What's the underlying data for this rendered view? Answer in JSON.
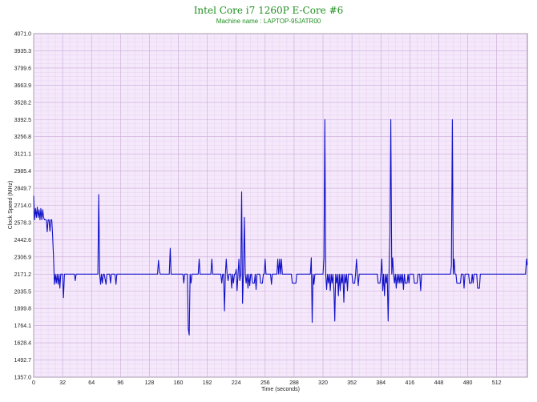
{
  "chart_data": {
    "type": "line",
    "title": "Intel Core i7 1260P E-Core #6",
    "subtitle": "Machine name : LAPTOP-95JATR00",
    "xlabel": "Time (seconds)",
    "ylabel": "Clock Speed (MHz)",
    "xlim": [
      0,
      546
    ],
    "ylim": [
      1357.0,
      4071.0
    ],
    "x_ticks": [
      0,
      32,
      64,
      96,
      128,
      160,
      192,
      224,
      256,
      288,
      320,
      352,
      384,
      416,
      448,
      480,
      512
    ],
    "y_ticks": [
      "1357.0",
      "1492.7",
      "1628.4",
      "1764.1",
      "1899.8",
      "2035.5",
      "2171.2",
      "2306.9",
      "2442.6",
      "2578.3",
      "2714.0",
      "2849.7",
      "2985.4",
      "3121.1",
      "3256.8",
      "3392.5",
      "3528.2",
      "3663.9",
      "3799.6",
      "3935.3",
      "4071.0"
    ],
    "grid": true,
    "colors": {
      "plot_bg": "#f5e8fb",
      "grid": "#c9a9d6",
      "series": "#1010c8",
      "title": "#1f8f1f"
    },
    "series": [
      {
        "values": [
          [
            0,
            2790
          ],
          [
            1,
            2600
          ],
          [
            2,
            2690
          ],
          [
            3,
            2620
          ],
          [
            4,
            2700
          ],
          [
            5,
            2620
          ],
          [
            6,
            2680
          ],
          [
            7,
            2600
          ],
          [
            8,
            2690
          ],
          [
            9,
            2600
          ],
          [
            10,
            2680
          ],
          [
            11,
            2620
          ],
          [
            12,
            2600
          ],
          [
            14,
            2600
          ],
          [
            15,
            2505
          ],
          [
            16,
            2600
          ],
          [
            17,
            2600
          ],
          [
            18,
            2510
          ],
          [
            19,
            2600
          ],
          [
            20,
            2600
          ],
          [
            21,
            2470
          ],
          [
            22,
            2300
          ],
          [
            23,
            2090
          ],
          [
            24,
            2171
          ],
          [
            25,
            2100
          ],
          [
            26,
            2171
          ],
          [
            27,
            2090
          ],
          [
            28,
            2171
          ],
          [
            29,
            2060
          ],
          [
            30,
            2171
          ],
          [
            31,
            2171
          ],
          [
            32,
            2171
          ],
          [
            33,
            1985
          ],
          [
            34,
            2171
          ],
          [
            40,
            2171
          ],
          [
            45,
            2171
          ],
          [
            46,
            2120
          ],
          [
            47,
            2171
          ],
          [
            60,
            2171
          ],
          [
            70,
            2171
          ],
          [
            71,
            2171
          ],
          [
            72,
            2800
          ],
          [
            73,
            2171
          ],
          [
            74,
            2090
          ],
          [
            75,
            2171
          ],
          [
            76,
            2100
          ],
          [
            77,
            2171
          ],
          [
            78,
            2171
          ],
          [
            80,
            2090
          ],
          [
            81,
            2171
          ],
          [
            84,
            2171
          ],
          [
            85,
            2100
          ],
          [
            86,
            2171
          ],
          [
            90,
            2171
          ],
          [
            91,
            2090
          ],
          [
            92,
            2171
          ],
          [
            100,
            2171
          ],
          [
            120,
            2171
          ],
          [
            137,
            2171
          ],
          [
            138,
            2280
          ],
          [
            139,
            2200
          ],
          [
            140,
            2171
          ],
          [
            150,
            2171
          ],
          [
            151,
            2375
          ],
          [
            152,
            2171
          ],
          [
            165,
            2171
          ],
          [
            166,
            2100
          ],
          [
            167,
            2171
          ],
          [
            170,
            2171
          ],
          [
            171,
            1740
          ],
          [
            172,
            1690
          ],
          [
            173,
            2171
          ],
          [
            174,
            2100
          ],
          [
            175,
            2171
          ],
          [
            182,
            2171
          ],
          [
            183,
            2290
          ],
          [
            184,
            2171
          ],
          [
            196,
            2171
          ],
          [
            197,
            2290
          ],
          [
            198,
            2171
          ],
          [
            207,
            2171
          ],
          [
            208,
            2100
          ],
          [
            209,
            2171
          ],
          [
            210,
            2171
          ],
          [
            211,
            1880
          ],
          [
            212,
            2171
          ],
          [
            213,
            2290
          ],
          [
            214,
            2171
          ],
          [
            215,
            2120
          ],
          [
            216,
            2171
          ],
          [
            218,
            2171
          ],
          [
            219,
            2060
          ],
          [
            220,
            2171
          ],
          [
            221,
            2100
          ],
          [
            222,
            2171
          ],
          [
            223,
            2171
          ],
          [
            224,
            2210
          ],
          [
            225,
            2040
          ],
          [
            226,
            2171
          ],
          [
            227,
            2290
          ],
          [
            228,
            2120
          ],
          [
            229,
            2171
          ],
          [
            230,
            2820
          ],
          [
            231,
            1940
          ],
          [
            232,
            2171
          ],
          [
            233,
            2620
          ],
          [
            234,
            2171
          ],
          [
            235,
            2100
          ],
          [
            236,
            2171
          ],
          [
            237,
            2060
          ],
          [
            238,
            2171
          ],
          [
            239,
            2080
          ],
          [
            240,
            2171
          ],
          [
            241,
            2171
          ],
          [
            242,
            2100
          ],
          [
            244,
            2100
          ],
          [
            245,
            2171
          ],
          [
            246,
            2050
          ],
          [
            247,
            2171
          ],
          [
            250,
            2171
          ],
          [
            251,
            2100
          ],
          [
            253,
            2100
          ],
          [
            254,
            2171
          ],
          [
            255,
            2171
          ],
          [
            256,
            2290
          ],
          [
            257,
            2171
          ],
          [
            262,
            2171
          ],
          [
            263,
            2090
          ],
          [
            264,
            2171
          ],
          [
            269,
            2171
          ],
          [
            270,
            2290
          ],
          [
            271,
            2171
          ],
          [
            272,
            2290
          ],
          [
            273,
            2171
          ],
          [
            274,
            2290
          ],
          [
            275,
            2171
          ],
          [
            285,
            2171
          ],
          [
            286,
            2100
          ],
          [
            290,
            2100
          ],
          [
            291,
            2171
          ],
          [
            306,
            2171
          ],
          [
            307,
            2300
          ],
          [
            308,
            1790
          ],
          [
            309,
            2171
          ],
          [
            310,
            2090
          ],
          [
            311,
            2171
          ],
          [
            320,
            2171
          ],
          [
            321,
            2300
          ],
          [
            322,
            3392
          ],
          [
            323,
            2171
          ],
          [
            324,
            2050
          ],
          [
            325,
            2171
          ],
          [
            326,
            2100
          ],
          [
            327,
            2171
          ],
          [
            328,
            2040
          ],
          [
            329,
            2171
          ],
          [
            330,
            2100
          ],
          [
            331,
            2171
          ],
          [
            332,
            2050
          ],
          [
            333,
            1800
          ],
          [
            334,
            2171
          ],
          [
            335,
            2100
          ],
          [
            336,
            2171
          ],
          [
            337,
            2000
          ],
          [
            338,
            2171
          ],
          [
            339,
            2040
          ],
          [
            340,
            2171
          ],
          [
            341,
            2100
          ],
          [
            342,
            2171
          ],
          [
            343,
            1950
          ],
          [
            344,
            2171
          ],
          [
            345,
            2100
          ],
          [
            346,
            2171
          ],
          [
            347,
            2040
          ],
          [
            348,
            2171
          ],
          [
            352,
            2171
          ],
          [
            353,
            2100
          ],
          [
            355,
            2100
          ],
          [
            356,
            2171
          ],
          [
            357,
            2290
          ],
          [
            358,
            2171
          ],
          [
            359,
            2080
          ],
          [
            360,
            2171
          ],
          [
            370,
            2171
          ],
          [
            380,
            2171
          ],
          [
            381,
            2100
          ],
          [
            383,
            2100
          ],
          [
            384,
            2171
          ],
          [
            385,
            2290
          ],
          [
            386,
            2040
          ],
          [
            387,
            2171
          ],
          [
            388,
            2000
          ],
          [
            389,
            2171
          ],
          [
            390,
            2100
          ],
          [
            391,
            2171
          ],
          [
            392,
            1800
          ],
          [
            393,
            2171
          ],
          [
            394,
            2470
          ],
          [
            395,
            3392
          ],
          [
            396,
            2171
          ],
          [
            397,
            2300
          ],
          [
            398,
            2171
          ],
          [
            399,
            2100
          ],
          [
            400,
            2171
          ],
          [
            401,
            2060
          ],
          [
            402,
            2171
          ],
          [
            403,
            2100
          ],
          [
            404,
            2171
          ],
          [
            405,
            2100
          ],
          [
            406,
            2171
          ],
          [
            407,
            2100
          ],
          [
            408,
            2171
          ],
          [
            409,
            2050
          ],
          [
            410,
            2171
          ],
          [
            411,
            2100
          ],
          [
            413,
            2100
          ],
          [
            414,
            2171
          ],
          [
            415,
            2100
          ],
          [
            416,
            2171
          ],
          [
            420,
            2171
          ],
          [
            421,
            2100
          ],
          [
            424,
            2100
          ],
          [
            425,
            2171
          ],
          [
            427,
            2171
          ],
          [
            428,
            2040
          ],
          [
            429,
            2171
          ],
          [
            440,
            2171
          ],
          [
            450,
            2171
          ],
          [
            461,
            2171
          ],
          [
            462,
            2240
          ],
          [
            463,
            3392
          ],
          [
            464,
            2171
          ],
          [
            465,
            2290
          ],
          [
            466,
            2171
          ],
          [
            467,
            2171
          ],
          [
            468,
            2100
          ],
          [
            472,
            2100
          ],
          [
            473,
            2171
          ],
          [
            475,
            2171
          ],
          [
            476,
            2060
          ],
          [
            477,
            2171
          ],
          [
            481,
            2171
          ],
          [
            482,
            2100
          ],
          [
            484,
            2100
          ],
          [
            485,
            2171
          ],
          [
            486,
            2100
          ],
          [
            487,
            2171
          ],
          [
            490,
            2171
          ],
          [
            491,
            2060
          ],
          [
            493,
            2060
          ],
          [
            494,
            2171
          ],
          [
            500,
            2171
          ],
          [
            510,
            2171
          ],
          [
            520,
            2171
          ],
          [
            530,
            2171
          ],
          [
            540,
            2171
          ],
          [
            544,
            2171
          ],
          [
            545,
            2290
          ],
          [
            546,
            2240
          ]
        ]
      }
    ]
  }
}
